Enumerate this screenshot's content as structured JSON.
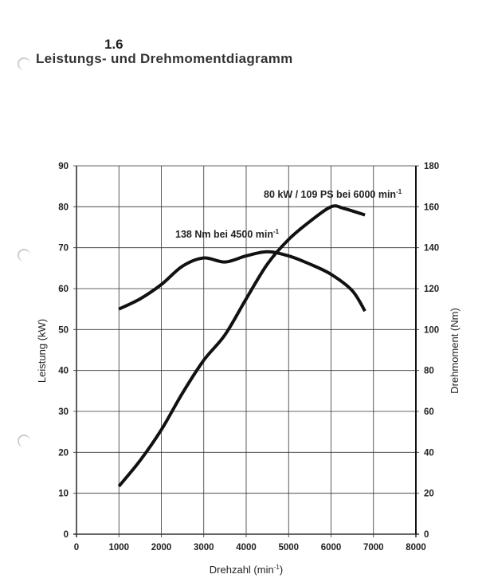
{
  "header": {
    "section": "1.6",
    "title": "Leistungs- und Drehmomentdiagramm"
  },
  "chart_data": {
    "type": "line",
    "title": "Leistungs- und Drehmomentdiagramm",
    "xlabel": "Drehzahl (min",
    "xlabel_sup": "-1",
    "xlabel_end": ")",
    "ylabel": "Leistung (kW)",
    "y2label": "Drehmoment (Nm)",
    "xlim": [
      0,
      8000
    ],
    "ylim": [
      0,
      90
    ],
    "y2lim": [
      0,
      180
    ],
    "grid": true,
    "xticks": [
      "0",
      "1000",
      "2000",
      "3000",
      "4000",
      "5000",
      "6000",
      "7000",
      "8000"
    ],
    "yticks": [
      "0",
      "10",
      "20",
      "30",
      "40",
      "50",
      "60",
      "70",
      "80",
      "90"
    ],
    "y2ticks": [
      "0",
      "20",
      "40",
      "60",
      "80",
      "100",
      "120",
      "140",
      "160",
      "180"
    ],
    "series": [
      {
        "name": "Leistung (kW)",
        "axis": "left",
        "x": [
          1000,
          1500,
          2000,
          2500,
          3000,
          3500,
          4000,
          4500,
          5000,
          5500,
          6000,
          6300,
          6800
        ],
        "y": [
          11.7,
          18,
          25.5,
          34.5,
          42.5,
          48.7,
          57.5,
          66,
          72,
          76.4,
          80,
          79.6,
          78
        ]
      },
      {
        "name": "Drehmoment (Nm)",
        "axis": "right",
        "x": [
          1000,
          1500,
          2000,
          2500,
          3000,
          3500,
          4000,
          4500,
          5000,
          5500,
          6000,
          6500,
          6800
        ],
        "y": [
          110,
          115,
          122,
          131,
          135,
          133,
          136,
          138,
          136,
          132,
          127,
          119,
          109
        ]
      }
    ],
    "annotations": [
      {
        "text": "80 kW / 109 PS bei 6000 min",
        "sup": "-1"
      },
      {
        "text": "138 Nm bei 4500 min",
        "sup": "-1"
      }
    ]
  }
}
